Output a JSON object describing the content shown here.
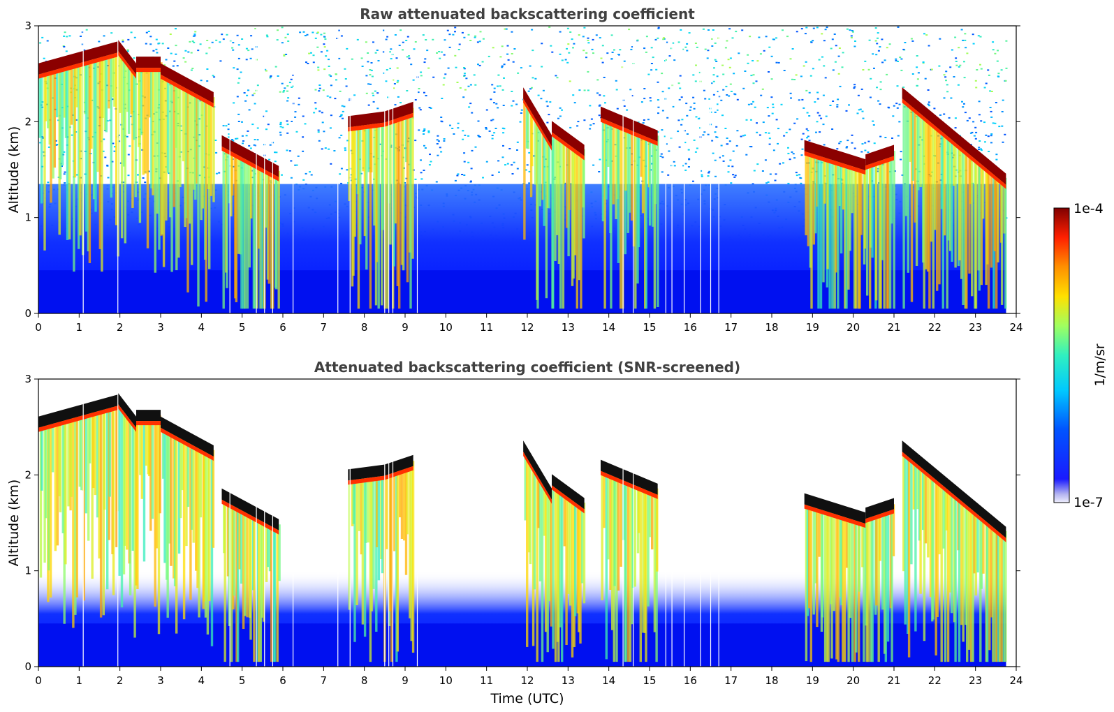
{
  "chart_data": [
    {
      "type": "heatmap",
      "title": "Raw attenuated backscattering coefficient",
      "xlabel": "",
      "ylabel": "Altitude (km)",
      "xlim": [
        0,
        24
      ],
      "ylim": [
        0,
        3
      ],
      "x_ticks": [
        "0",
        "1",
        "2",
        "3",
        "4",
        "5",
        "6",
        "7",
        "8",
        "9",
        "10",
        "11",
        "12",
        "13",
        "14",
        "15",
        "16",
        "17",
        "18",
        "19",
        "20",
        "21",
        "22",
        "23",
        "24"
      ],
      "y_ticks": [
        "0",
        "1",
        "2",
        "3"
      ],
      "data_end_hour": 23.75,
      "cloud_base_layers": [
        {
          "start": 0.0,
          "end": 1.95,
          "alt_start": 2.55,
          "alt_end": 2.78
        },
        {
          "start": 1.95,
          "end": 2.4,
          "alt_start": 2.8,
          "alt_end": 2.55
        },
        {
          "start": 2.4,
          "end": 3.0,
          "alt_start": 2.62,
          "alt_end": 2.62
        },
        {
          "start": 3.0,
          "end": 4.3,
          "alt_start": 2.55,
          "alt_end": 2.25
        },
        {
          "start": 4.5,
          "end": 5.9,
          "alt_start": 1.8,
          "alt_end": 1.48
        },
        {
          "start": 7.6,
          "end": 8.5,
          "alt_start": 2.0,
          "alt_end": 2.05
        },
        {
          "start": 8.5,
          "end": 9.2,
          "alt_start": 2.05,
          "alt_end": 2.15
        },
        {
          "start": 11.9,
          "end": 12.6,
          "alt_start": 2.3,
          "alt_end": 1.8
        },
        {
          "start": 12.6,
          "end": 13.4,
          "alt_start": 1.95,
          "alt_end": 1.7
        },
        {
          "start": 13.8,
          "end": 15.2,
          "alt_start": 2.1,
          "alt_end": 1.85
        },
        {
          "start": 18.8,
          "end": 20.3,
          "alt_start": 1.75,
          "alt_end": 1.55
        },
        {
          "start": 20.3,
          "end": 21.0,
          "alt_start": 1.6,
          "alt_end": 1.7
        },
        {
          "start": 21.2,
          "end": 23.75,
          "alt_start": 2.3,
          "alt_end": 1.4
        }
      ]
    },
    {
      "type": "heatmap",
      "title": "Attenuated backscattering coefficient (SNR-screened)",
      "xlabel": "Time (UTC)",
      "ylabel": "Altitude (km)",
      "xlim": [
        0,
        24
      ],
      "ylim": [
        0,
        3
      ],
      "x_ticks": [
        "0",
        "1",
        "2",
        "3",
        "4",
        "5",
        "6",
        "7",
        "8",
        "9",
        "10",
        "11",
        "12",
        "13",
        "14",
        "15",
        "16",
        "17",
        "18",
        "19",
        "20",
        "21",
        "22",
        "23",
        "24"
      ],
      "y_ticks": [
        "0",
        "1",
        "2",
        "3"
      ],
      "data_end_hour": 23.75,
      "screened_clear_altitude_km": 0.9
    }
  ],
  "colorbar": {
    "label": "1/m/sr",
    "max_label": "1e-4",
    "min_label": "1e-7",
    "colormap": "jet",
    "colors": [
      "#e8e8f8",
      "#0000ff",
      "#00c8ff",
      "#80ff80",
      "#ffd000",
      "#ff4000",
      "#800000"
    ]
  }
}
